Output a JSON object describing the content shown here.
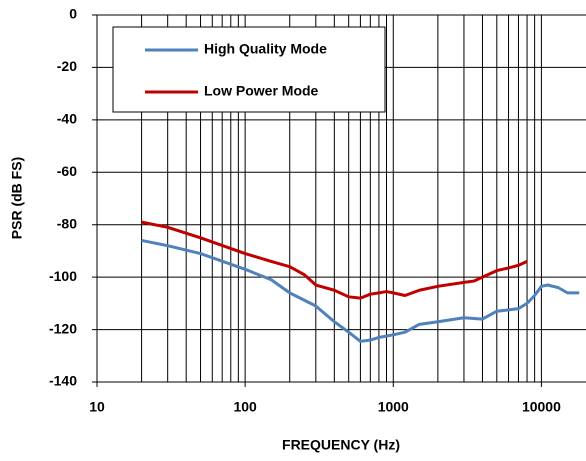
{
  "chart_data": {
    "type": "line",
    "xlabel": "FREQUENCY (Hz)",
    "ylabel": "PSR (dB FS)",
    "xscale": "log",
    "xlim": [
      10,
      20000
    ],
    "ylim": [
      -140,
      0
    ],
    "xticks": [
      10,
      100,
      1000,
      10000
    ],
    "x_minor_grid": [
      20,
      30,
      40,
      50,
      60,
      70,
      80,
      90,
      200,
      300,
      400,
      500,
      600,
      700,
      800,
      900,
      2000,
      3000,
      4000,
      5000,
      6000,
      7000,
      8000,
      9000
    ],
    "yticks": [
      0,
      -20,
      -40,
      -60,
      -80,
      -100,
      -120,
      -140
    ],
    "grid": true,
    "legend": "upper left",
    "series": [
      {
        "name": "High Quality Mode",
        "color": "#4f81bd",
        "x": [
          20,
          30,
          50,
          100,
          150,
          200,
          300,
          400,
          500,
          600,
          700,
          800,
          1000,
          1200,
          1500,
          2000,
          3000,
          4000,
          5000,
          6000,
          7000,
          8000,
          9000,
          10000,
          11000,
          13000,
          15000,
          18000
        ],
        "values": [
          -86,
          -88,
          -91,
          -97,
          -101,
          -106,
          -111,
          -117,
          -121,
          -124.5,
          -124,
          -123,
          -122,
          -121,
          -118,
          -117,
          -115.5,
          -116,
          -113,
          -112.5,
          -112,
          -110,
          -107,
          -103.5,
          -103,
          -104,
          -106,
          -106
        ]
      },
      {
        "name": "Low Power Mode",
        "color": "#c00000",
        "x": [
          20,
          30,
          50,
          100,
          150,
          200,
          250,
          300,
          400,
          500,
          600,
          700,
          800,
          900,
          1000,
          1200,
          1500,
          2000,
          3000,
          3500,
          4000,
          5000,
          6000,
          7000,
          8000
        ],
        "values": [
          -79,
          -81,
          -85,
          -91,
          -94,
          -96,
          -99,
          -103,
          -105,
          -107.5,
          -108,
          -106.5,
          -106,
          -105.5,
          -106,
          -107,
          -105,
          -103.5,
          -102,
          -101.5,
          -100,
          -97.5,
          -96.5,
          -95.5,
          -94
        ]
      }
    ]
  }
}
